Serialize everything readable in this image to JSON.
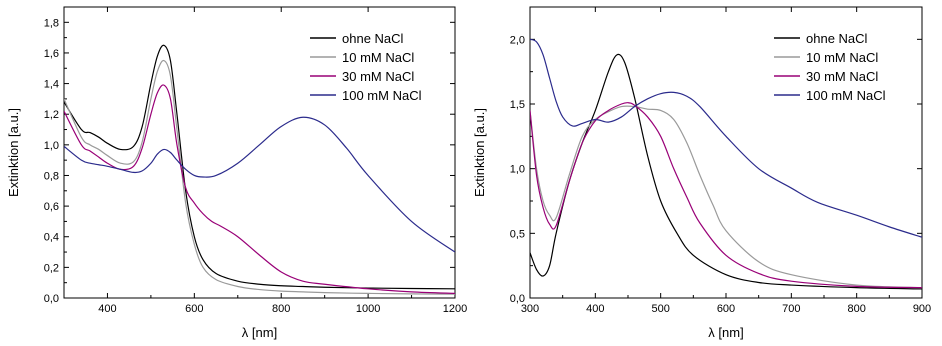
{
  "chart_data": [
    {
      "type": "line",
      "title": "",
      "xlabel": "λ [nm]",
      "ylabel": "Extinktion [a.u.]",
      "xlim": [
        300,
        1200
      ],
      "ylim": [
        0,
        1.9
      ],
      "xticks": [
        400,
        600,
        800,
        1000,
        1200
      ],
      "xtick_labels": [
        "400",
        "600",
        "800",
        "1000",
        "1200"
      ],
      "yticks": [
        0,
        0.2,
        0.4,
        0.6,
        0.8,
        1.0,
        1.2,
        1.4,
        1.6,
        1.8
      ],
      "ytick_labels": [
        "0,0",
        "0,2",
        "0,4",
        "0,6",
        "0,8",
        "1,0",
        "1,2",
        "1,4",
        "1,6",
        "1,8"
      ],
      "grid": false,
      "legend_position": "top-right",
      "series": [
        {
          "name": "ohne NaCl",
          "color": "#000000",
          "x": [
            300,
            340,
            360,
            380,
            400,
            430,
            460,
            480,
            500,
            515,
            530,
            545,
            560,
            580,
            600,
            620,
            650,
            700,
            750,
            800,
            850,
            900,
            1000,
            1100,
            1200
          ],
          "y": [
            1.28,
            1.1,
            1.08,
            1.05,
            1.01,
            0.97,
            0.99,
            1.12,
            1.4,
            1.58,
            1.65,
            1.55,
            1.2,
            0.7,
            0.4,
            0.25,
            0.16,
            0.11,
            0.09,
            0.08,
            0.075,
            0.07,
            0.065,
            0.062,
            0.06
          ]
        },
        {
          "name": "10 mM NaCl",
          "color": "#9a9a9a",
          "x": [
            300,
            340,
            360,
            380,
            400,
            430,
            460,
            480,
            500,
            515,
            530,
            545,
            560,
            580,
            600,
            620,
            650,
            700,
            750,
            800,
            850,
            900,
            1000,
            1100,
            1200
          ],
          "y": [
            1.3,
            1.05,
            1.0,
            0.97,
            0.93,
            0.88,
            0.89,
            1.02,
            1.3,
            1.48,
            1.55,
            1.45,
            1.1,
            0.62,
            0.35,
            0.2,
            0.12,
            0.075,
            0.055,
            0.045,
            0.04,
            0.035,
            0.03,
            0.027,
            0.025
          ]
        },
        {
          "name": "30 mM NaCl",
          "color": "#990077",
          "x": [
            300,
            340,
            360,
            380,
            400,
            430,
            460,
            480,
            500,
            515,
            530,
            545,
            560,
            580,
            600,
            620,
            640,
            660,
            700,
            750,
            800,
            850,
            900,
            1000,
            1100,
            1200
          ],
          "y": [
            1.22,
            1.0,
            0.96,
            0.92,
            0.88,
            0.84,
            0.86,
            0.98,
            1.2,
            1.34,
            1.39,
            1.3,
            1.0,
            0.72,
            0.62,
            0.55,
            0.5,
            0.47,
            0.4,
            0.28,
            0.17,
            0.11,
            0.09,
            0.06,
            0.04,
            0.03
          ]
        },
        {
          "name": "100 mM NaCl",
          "color": "#2b2b8c",
          "x": [
            300,
            340,
            360,
            380,
            400,
            430,
            460,
            480,
            500,
            515,
            530,
            545,
            560,
            580,
            600,
            620,
            650,
            700,
            750,
            800,
            850,
            900,
            950,
            1000,
            1100,
            1200
          ],
          "y": [
            0.99,
            0.9,
            0.88,
            0.87,
            0.86,
            0.84,
            0.82,
            0.83,
            0.88,
            0.94,
            0.97,
            0.95,
            0.9,
            0.84,
            0.8,
            0.79,
            0.8,
            0.88,
            1.0,
            1.12,
            1.18,
            1.13,
            0.98,
            0.8,
            0.5,
            0.3
          ]
        }
      ]
    },
    {
      "type": "line",
      "title": "",
      "xlabel": "λ [nm]",
      "ylabel": "Extinktion [a.u.]",
      "xlim": [
        300,
        900
      ],
      "ylim": [
        0,
        2.25
      ],
      "xticks": [
        300,
        400,
        500,
        600,
        700,
        800,
        900
      ],
      "xtick_labels": [
        "300",
        "400",
        "500",
        "600",
        "700",
        "800",
        "900"
      ],
      "yticks": [
        0,
        0.5,
        1.0,
        1.5,
        2.0
      ],
      "ytick_labels": [
        "0,0",
        "0,5",
        "1,0",
        "1,5",
        "2,0"
      ],
      "grid": false,
      "legend_position": "top-right",
      "series": [
        {
          "name": "ohne NaCl",
          "color": "#000000",
          "x": [
            300,
            310,
            320,
            330,
            340,
            360,
            380,
            400,
            420,
            433,
            445,
            460,
            480,
            500,
            525,
            550,
            600,
            650,
            700,
            800,
            900
          ],
          "y": [
            0.35,
            0.22,
            0.17,
            0.25,
            0.5,
            0.9,
            1.2,
            1.45,
            1.75,
            1.88,
            1.82,
            1.55,
            1.1,
            0.75,
            0.5,
            0.33,
            0.18,
            0.12,
            0.1,
            0.08,
            0.07
          ]
        },
        {
          "name": "10 mM NaCl",
          "color": "#9a9a9a",
          "x": [
            300,
            310,
            320,
            330,
            340,
            360,
            380,
            400,
            420,
            440,
            460,
            480,
            500,
            520,
            540,
            560,
            580,
            600,
            650,
            700,
            800,
            900
          ],
          "y": [
            1.45,
            1.0,
            0.75,
            0.64,
            0.62,
            0.95,
            1.25,
            1.38,
            1.44,
            1.48,
            1.48,
            1.46,
            1.45,
            1.38,
            1.2,
            0.95,
            0.72,
            0.52,
            0.28,
            0.18,
            0.1,
            0.08
          ]
        },
        {
          "name": "30 mM NaCl",
          "color": "#990077",
          "x": [
            300,
            310,
            320,
            330,
            340,
            360,
            380,
            400,
            420,
            440,
            450,
            460,
            480,
            500,
            520,
            540,
            560,
            600,
            650,
            700,
            800,
            900
          ],
          "y": [
            1.45,
            0.95,
            0.7,
            0.57,
            0.56,
            0.9,
            1.2,
            1.37,
            1.45,
            1.5,
            1.51,
            1.49,
            1.4,
            1.25,
            1.0,
            0.78,
            0.58,
            0.33,
            0.19,
            0.13,
            0.09,
            0.08
          ]
        },
        {
          "name": "100 mM NaCl",
          "color": "#2b2b8c",
          "x": [
            300,
            310,
            320,
            330,
            340,
            350,
            365,
            380,
            400,
            420,
            440,
            460,
            480,
            500,
            520,
            540,
            560,
            600,
            650,
            700,
            740,
            800,
            850,
            900
          ],
          "y": [
            2.0,
            1.98,
            1.88,
            1.7,
            1.52,
            1.4,
            1.33,
            1.35,
            1.38,
            1.36,
            1.4,
            1.48,
            1.54,
            1.58,
            1.59,
            1.56,
            1.48,
            1.25,
            1.0,
            0.85,
            0.74,
            0.64,
            0.55,
            0.47
          ]
        }
      ]
    }
  ]
}
